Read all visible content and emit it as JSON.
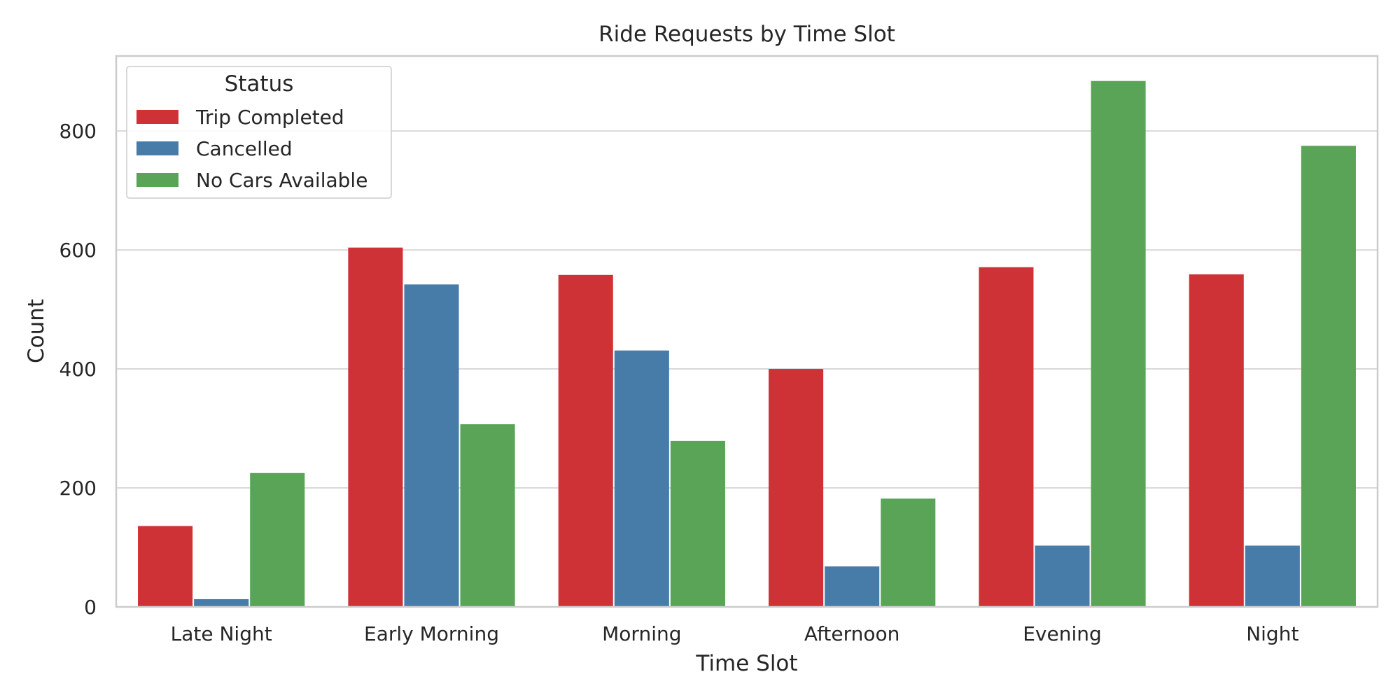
{
  "chart_data": {
    "type": "bar",
    "title": "Ride Requests by Time Slot",
    "xlabel": "Time Slot",
    "ylabel": "Count",
    "categories": [
      "Late Night",
      "Early Morning",
      "Morning",
      "Afternoon",
      "Evening",
      "Night"
    ],
    "series": [
      {
        "name": "Trip Completed",
        "color": "#cf3236",
        "values": [
          136,
          604,
          558,
          400,
          571,
          559
        ]
      },
      {
        "name": "Cancelled",
        "color": "#477ca8",
        "values": [
          13,
          542,
          431,
          68,
          103,
          103
        ]
      },
      {
        "name": "No Cars Available",
        "color": "#59a457",
        "values": [
          225,
          307,
          279,
          182,
          884,
          775
        ]
      }
    ],
    "ylim": [
      0,
      926
    ],
    "yticks": [
      0,
      200,
      400,
      600,
      800
    ],
    "grid": true,
    "legend": {
      "title": "Status",
      "placement": "top-left"
    }
  }
}
